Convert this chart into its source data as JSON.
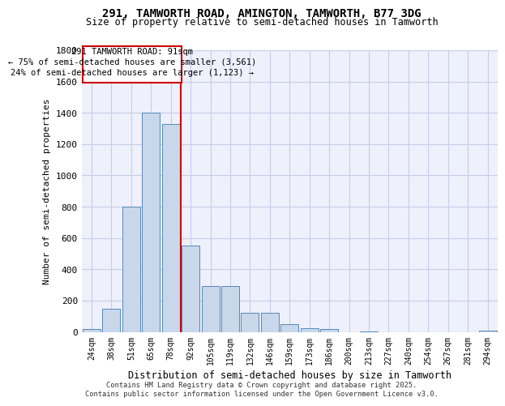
{
  "title1": "291, TAMWORTH ROAD, AMINGTON, TAMWORTH, B77 3DG",
  "title2": "Size of property relative to semi-detached houses in Tamworth",
  "xlabel": "Distribution of semi-detached houses by size in Tamworth",
  "ylabel": "Number of semi-detached properties",
  "categories": [
    "24sqm",
    "38sqm",
    "51sqm",
    "65sqm",
    "78sqm",
    "92sqm",
    "105sqm",
    "119sqm",
    "132sqm",
    "146sqm",
    "159sqm",
    "173sqm",
    "186sqm",
    "200sqm",
    "213sqm",
    "227sqm",
    "240sqm",
    "254sqm",
    "267sqm",
    "281sqm",
    "294sqm"
  ],
  "values": [
    20,
    150,
    800,
    1400,
    1330,
    550,
    295,
    295,
    120,
    120,
    50,
    25,
    20,
    0,
    5,
    0,
    0,
    0,
    0,
    0,
    10
  ],
  "bar_color": "#c8d8ea",
  "bar_edge_color": "#5588bb",
  "annotation_title": "291 TAMWORTH ROAD: 91sqm",
  "annotation_line1": "← 75% of semi-detached houses are smaller (3,561)",
  "annotation_line2": "24% of semi-detached houses are larger (1,123) →",
  "vline_color": "#cc0000",
  "vline_x": 5,
  "ann_box_edge_color": "#cc0000",
  "ylim_max": 1800,
  "yticks": [
    0,
    200,
    400,
    600,
    800,
    1000,
    1200,
    1400,
    1600,
    1800
  ],
  "grid_color": "#c8cce8",
  "bg_color": "#eef0fb",
  "footer1": "Contains HM Land Registry data © Crown copyright and database right 2025.",
  "footer2": "Contains public sector information licensed under the Open Government Licence v3.0."
}
